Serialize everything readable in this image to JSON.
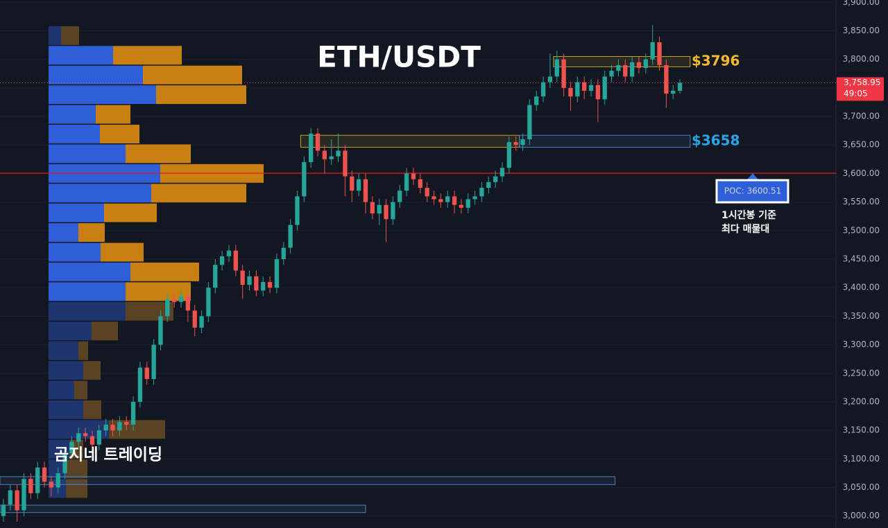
{
  "chart_data": {
    "type": "candlestick",
    "title": "ETH/USDT",
    "watermark": "곰지네 트레이딩",
    "up_color": "#26a69a",
    "down_color": "#ef5350",
    "open": [
      3000,
      3020,
      3045,
      3010,
      3065,
      3040,
      3085,
      3060,
      3050,
      3075,
      3110,
      3130,
      3145,
      3140,
      3125,
      3150,
      3160,
      3150,
      3165,
      3160,
      3200,
      3260,
      3240,
      3300,
      3350,
      3380,
      3375,
      3385,
      3360,
      3330,
      3350,
      3400,
      3440,
      3455,
      3465,
      3430,
      3405,
      3420,
      3395,
      3410,
      3400,
      3450,
      3470,
      3510,
      3560,
      3620,
      3670,
      3640,
      3625,
      3630,
      3640,
      3595,
      3570,
      3590,
      3550,
      3530,
      3545,
      3520,
      3550,
      3570,
      3600,
      3590,
      3575,
      3560,
      3555,
      3550,
      3560,
      3545,
      3540,
      3555,
      3560,
      3575,
      3585,
      3595,
      3610,
      3655,
      3650,
      3660,
      3720,
      3735,
      3760,
      3770,
      3800,
      3750,
      3735,
      3760,
      3745,
      3755,
      3730,
      3770,
      3780,
      3790,
      3770,
      3795,
      3785,
      3800,
      3830,
      3790,
      3740,
      3745
    ],
    "high": [
      3030,
      3055,
      3055,
      3075,
      3075,
      3095,
      3095,
      3070,
      3085,
      3120,
      3140,
      3155,
      3155,
      3150,
      3160,
      3170,
      3170,
      3175,
      3175,
      3210,
      3270,
      3270,
      3310,
      3360,
      3390,
      3390,
      3395,
      3395,
      3370,
      3360,
      3410,
      3450,
      3465,
      3475,
      3475,
      3440,
      3430,
      3430,
      3420,
      3420,
      3460,
      3480,
      3520,
      3570,
      3630,
      3680,
      3680,
      3650,
      3660,
      3670,
      3650,
      3605,
      3600,
      3600,
      3560,
      3555,
      3555,
      3560,
      3580,
      3610,
      3610,
      3600,
      3585,
      3570,
      3565,
      3570,
      3570,
      3555,
      3565,
      3570,
      3585,
      3595,
      3605,
      3620,
      3665,
      3665,
      3670,
      3730,
      3745,
      3770,
      3810,
      3815,
      3810,
      3760,
      3770,
      3770,
      3765,
      3765,
      3780,
      3790,
      3800,
      3800,
      3805,
      3805,
      3810,
      3860,
      3840,
      3800,
      3755,
      3765
    ],
    "low": [
      2990,
      3010,
      2990,
      3000,
      3030,
      3030,
      3050,
      3035,
      3040,
      3065,
      3100,
      3120,
      3130,
      3115,
      3115,
      3140,
      3140,
      3140,
      3150,
      3150,
      3190,
      3230,
      3230,
      3290,
      3340,
      3365,
      3365,
      3340,
      3315,
      3320,
      3340,
      3390,
      3430,
      3445,
      3420,
      3380,
      3395,
      3385,
      3385,
      3390,
      3390,
      3440,
      3460,
      3500,
      3550,
      3610,
      3630,
      3600,
      3615,
      3620,
      3560,
      3550,
      3560,
      3530,
      3520,
      3510,
      3480,
      3510,
      3540,
      3560,
      3580,
      3565,
      3550,
      3545,
      3540,
      3540,
      3530,
      3530,
      3530,
      3545,
      3550,
      3565,
      3575,
      3585,
      3600,
      3640,
      3640,
      3650,
      3710,
      3725,
      3750,
      3760,
      3735,
      3710,
      3725,
      3730,
      3735,
      3690,
      3720,
      3760,
      3770,
      3760,
      3760,
      3775,
      3775,
      3790,
      3780,
      3715,
      3730,
      3740
    ],
    "close": [
      3020,
      3045,
      3010,
      3065,
      3040,
      3085,
      3060,
      3050,
      3075,
      3110,
      3130,
      3145,
      3140,
      3125,
      3150,
      3160,
      3150,
      3165,
      3160,
      3200,
      3260,
      3240,
      3300,
      3350,
      3380,
      3375,
      3385,
      3360,
      3330,
      3350,
      3400,
      3440,
      3455,
      3465,
      3430,
      3405,
      3420,
      3395,
      3410,
      3400,
      3450,
      3470,
      3510,
      3560,
      3620,
      3670,
      3640,
      3625,
      3630,
      3640,
      3595,
      3570,
      3590,
      3550,
      3530,
      3545,
      3520,
      3550,
      3570,
      3600,
      3590,
      3575,
      3560,
      3555,
      3550,
      3560,
      3545,
      3540,
      3555,
      3560,
      3575,
      3585,
      3595,
      3610,
      3655,
      3650,
      3660,
      3720,
      3735,
      3760,
      3770,
      3800,
      3750,
      3735,
      3760,
      3745,
      3755,
      3730,
      3770,
      3780,
      3790,
      3770,
      3795,
      3785,
      3800,
      3830,
      3790,
      3740,
      3745,
      3758.95
    ],
    "ylim": [
      2979,
      3904
    ],
    "yticks": [
      {
        "value": 3000,
        "label": "3,000.00"
      },
      {
        "value": 3050,
        "label": "3,050.00"
      },
      {
        "value": 3100,
        "label": "3,100.00"
      },
      {
        "value": 3150,
        "label": "3,150.00"
      },
      {
        "value": 3200,
        "label": "3,200.00"
      },
      {
        "value": 3250,
        "label": "3,250.00"
      },
      {
        "value": 3300,
        "label": "3,300.00"
      },
      {
        "value": 3350,
        "label": "3,350.00"
      },
      {
        "value": 3400,
        "label": "3,400.00"
      },
      {
        "value": 3450,
        "label": "3,450.00"
      },
      {
        "value": 3500,
        "label": "3,500.00"
      },
      {
        "value": 3550,
        "label": "3,550.00"
      },
      {
        "value": 3600,
        "label": "3,600.00"
      },
      {
        "value": 3650,
        "label": "3,650.00"
      },
      {
        "value": 3700,
        "label": "3,700.00"
      },
      {
        "value": 3750,
        "label": "3,750.00"
      },
      {
        "value": 3800,
        "label": "3,800.00"
      },
      {
        "value": 3850,
        "label": "3,850.00"
      },
      {
        "value": 3900,
        "label": "3,900.00"
      }
    ],
    "grid": true,
    "last_price": {
      "value": 3758.95,
      "label": "3,758.95"
    },
    "countdown": "49:05",
    "poc": {
      "value": 3600.51,
      "label": "POC: 3600.51"
    },
    "poc_note": [
      "1시간봉 기준",
      "최다 매물대"
    ],
    "zones": [
      {
        "label": "$3796",
        "low": 3787,
        "high": 3805,
        "from": 81,
        "to": 101,
        "color": "#c9a227",
        "text_color": "#f5b82e"
      },
      {
        "low": 3646,
        "high": 3667,
        "from": 44,
        "to": 76,
        "color": "#c9a227"
      },
      {
        "label": "$3658",
        "low": 3646,
        "high": 3667,
        "from": 76,
        "to": 101,
        "color": "#4a7fc1",
        "text_color": "#2aa3e8"
      },
      {
        "low": 3055,
        "high": 3069,
        "from": 0,
        "to": 90,
        "color": "#4a7fc1"
      },
      {
        "low": 3006,
        "high": 3019,
        "from": 0,
        "to": 53.5,
        "color": "#4a7fc1"
      }
    ],
    "profile": {
      "bins": [
        3858,
        3823.5,
        3789,
        3754.5,
        3720,
        3685.5,
        3651,
        3616.5,
        3582,
        3547.5,
        3513,
        3478.5,
        3444,
        3409.5,
        3375,
        3340.5,
        3306,
        3271.5,
        3237,
        3202.5,
        3168,
        3133.5,
        3099,
        3064.5,
        3030
      ],
      "buy": [
        18,
        93,
        136,
        155,
        68,
        74,
        111,
        161,
        148,
        80,
        43,
        75,
        118,
        111,
        111,
        62,
        43,
        50,
        37,
        50,
        87,
        30,
        25,
        25
      ],
      "sell": [
        26,
        99,
        143,
        130,
        50,
        57,
        94,
        149,
        137,
        76,
        38,
        62,
        99,
        94,
        69,
        38,
        14,
        25,
        19,
        26,
        81,
        20,
        31,
        31
      ],
      "value_area": [
        3375,
        3823.5
      ],
      "buy_color": "#2f5fd8",
      "sell_color": "#c98012",
      "buy_dim_color": "#1f3570",
      "sell_dim_color": "#5a4322"
    }
  }
}
